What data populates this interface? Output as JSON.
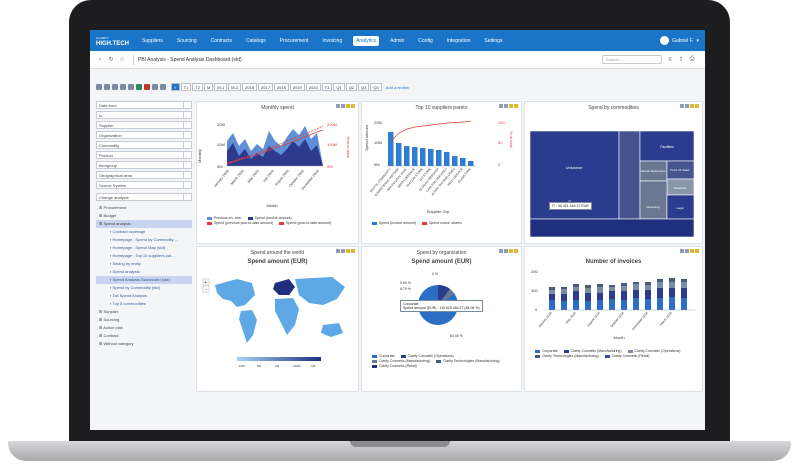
{
  "app": {
    "logo": "HIGH.TECH",
    "logo_sub": "CLARITY",
    "nav": [
      "Suppliers",
      "Sourcing",
      "Contracts",
      "Catalogs",
      "Procurement",
      "Invoicing",
      "Analytics",
      "Admin",
      "Config",
      "Integration",
      "Settings"
    ],
    "active_nav": "Analytics",
    "user": "Gabriel F."
  },
  "page": {
    "title": "PBI Analysis - Spend Analysis Dashboard (std)",
    "search_placeholder": "Search..."
  },
  "toolbar": {
    "periods": [
      "Y",
      "T1",
      "T2",
      "M",
      "M-1",
      "M-2",
      "2016",
      "2017",
      "2018",
      "2019",
      "2020",
      "T3",
      "Q1",
      "Q2",
      "Q3",
      "Q4"
    ],
    "selected": "Y",
    "add_review": "Add a review"
  },
  "filters": [
    "Date from",
    "to",
    "Supplier",
    "Organization",
    "Commodity",
    "Product",
    "Itemgroup",
    "Geographical area",
    "Source System"
  ],
  "tree": {
    "change": "Change analysis",
    "items": [
      {
        "label": "Procurement",
        "sub": false,
        "hl": false
      },
      {
        "label": "Budget",
        "sub": false,
        "hl": false
      },
      {
        "label": "Spend analysis",
        "sub": false,
        "hl": true
      },
      {
        "label": "Contract coverage",
        "sub": true,
        "hl": false
      },
      {
        "label": "Homepage : Spend by Commodity ...",
        "sub": true,
        "hl": false
      },
      {
        "label": "Homepage : Spend Map (std)",
        "sub": true,
        "hl": false
      },
      {
        "label": "Homepage : Top 10 suppliers par...",
        "sub": true,
        "hl": false
      },
      {
        "label": "Saving by entity",
        "sub": true,
        "hl": false
      },
      {
        "label": "Spend analysis",
        "sub": true,
        "hl": false
      },
      {
        "label": "Spend Analysis Dashboard (std)",
        "sub": true,
        "hl": true
      },
      {
        "label": "Spend by Commodity (std)",
        "sub": true,
        "hl": false
      },
      {
        "label": "Tail Spend Analysis",
        "sub": true,
        "hl": false
      },
      {
        "label": "Top 5 commodities",
        "sub": true,
        "hl": false
      },
      {
        "label": "Supplier",
        "sub": false,
        "hl": false
      },
      {
        "label": "Sourcing",
        "sub": false,
        "hl": false
      },
      {
        "label": "Action plan",
        "sub": false,
        "hl": false
      },
      {
        "label": "Contract",
        "sub": false,
        "hl": false
      },
      {
        "label": "Without category",
        "sub": false,
        "hl": false
      }
    ]
  },
  "panels": {
    "monthly": {
      "title": "Monthly spend",
      "xlabel": "Month",
      "ylabel": "Monthly",
      "y2label": "Year-to-date",
      "legend": [
        "Previous inv. amt.",
        "Spend (invoice amount)",
        "Spend (previous year-to-date amount)",
        "Spend (year-to-date amount)"
      ],
      "yticks": [
        "20M",
        "10M",
        "0M"
      ],
      "y2ticks": [
        "200M",
        "100M",
        "0M"
      ],
      "months": [
        "January 2016",
        "March 2016",
        "May 2016",
        "July 2016",
        "August 2016",
        "October 2016",
        "December 2016"
      ],
      "colors": {
        "area": "#2e3a8c",
        "area2": "#5f8fd6",
        "line": "#e23b3b"
      }
    },
    "pareto": {
      "title": "Top 10 suppliers pareto",
      "xlabel": "Supplier Grp",
      "ylabel": "Spend amount",
      "y2label": "% of total",
      "legend": [
        "Spend (invoice amount)",
        "Spend cumul. shares"
      ],
      "yticks": [
        "20M",
        "10M",
        "0M"
      ],
      "y2ticks": [
        "100",
        "50",
        "0"
      ],
      "suppliers": [
        "DIGITAL COMMUNITY",
        "COMPETENCE PARTNER",
        "BPA FIDUCIAL DUAL",
        "DEFRA DEFENCE",
        "TECCOM STORE",
        "GO STORE",
        "ALSALSA WEBSHOP",
        "CARLSON SERVICES",
        "ALTAIR TECHNOLOGIES",
        "KELLYSERVICE",
        "GLADSTONE"
      ],
      "colors": {
        "bar": "#2e7dd1",
        "line": "#e23b3b"
      }
    },
    "commodity": {
      "title": "Spend by commodities",
      "labels": [
        "Unknown",
        "Facilities",
        "Human Resources",
        "Point Of Sales",
        "Materials",
        "Marketing",
        "Legal",
        "IT"
      ],
      "tooltip": "IT : 30 421 418.27 EUR",
      "colors": {
        "main": "#2b3c8f",
        "alt": "#45548f",
        "grey": "#6b7891",
        "light": "#8a97aa"
      }
    },
    "world": {
      "subtitle": "Spend around the world",
      "title": "Spend amount (EUR)",
      "scale": [
        "10M",
        "5M",
        "1M",
        "100M",
        "1M"
      ],
      "colors": {
        "land": "#5ea8e6",
        "dark": "#1f2f7d",
        "sea": "#ffffff"
      }
    },
    "org": {
      "subtitle": "Spend by organization",
      "title": "Spend amount (EUR)",
      "tooltip_title": "Corporate",
      "tooltip_value": "Spend amount (EUR) : 119 625 464.27 (84.05 %)",
      "pct_labels": [
        "0 %",
        "0.69 %",
        "6.79 %",
        "84.05 %"
      ],
      "legend": [
        "Corporate",
        "Clarity Cosmetic (Operations)",
        "Clarity Cosmetic (Manufacturing)",
        "Clarity Technologies (Manufacturing)",
        "Clarity Cosmetic (Retail)"
      ],
      "colors": [
        "#2a6fc4",
        "#2b3c8f",
        "#6b7891",
        "#4a5b76",
        "#1f2f7d"
      ]
    },
    "invoices": {
      "title": "Number of invoices",
      "xlabel": "Month",
      "yticks": [
        "200",
        "100",
        "0"
      ],
      "legend": [
        "Corporate",
        "Clarity Cosmetic (Manufacturing)",
        "Clarity Cosmetic (Operations)",
        "Clarity Technologies (Manufacturing)",
        "Clarity Cosmetic (Retail)"
      ],
      "colors": [
        "#2a6fc4",
        "#2b3c8f",
        "#7b8aa5",
        "#4a5b76",
        "#3a4a9a"
      ]
    }
  }
}
